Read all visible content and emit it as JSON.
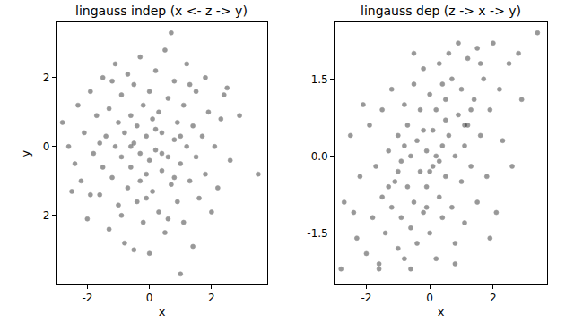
{
  "chart_data": [
    {
      "type": "scatter",
      "title": "lingauss indep (x <- z -> y)",
      "x_label": "x",
      "y_label": "y",
      "color": "#000000",
      "marker": "circle",
      "xlim": [
        -3.0,
        3.8
      ],
      "ylim": [
        -4.0,
        3.6
      ],
      "xticks": [
        -2,
        0,
        2
      ],
      "yticks": [
        -2,
        0,
        2
      ],
      "x": [
        -2.8,
        -2.6,
        -2.4,
        -2.3,
        -2.2,
        -2.1,
        -2.0,
        -1.9,
        -1.8,
        -1.7,
        -1.6,
        -1.5,
        -1.5,
        -1.4,
        -1.3,
        -1.3,
        -1.2,
        -1.1,
        -1.1,
        -1.0,
        -1.0,
        -0.9,
        -0.9,
        -0.8,
        -0.8,
        -0.7,
        -0.7,
        -0.6,
        -0.6,
        -0.5,
        -0.5,
        -0.5,
        -0.4,
        -0.4,
        -0.3,
        -0.3,
        -0.2,
        -0.2,
        -0.1,
        -0.1,
        0.0,
        0.0,
        0.0,
        0.1,
        0.1,
        0.2,
        0.2,
        0.3,
        0.3,
        0.4,
        0.4,
        0.5,
        0.5,
        0.6,
        0.6,
        0.7,
        0.7,
        0.8,
        0.8,
        0.9,
        0.9,
        1.0,
        1.0,
        1.1,
        1.1,
        1.2,
        1.2,
        1.3,
        1.4,
        1.4,
        1.5,
        1.5,
        1.6,
        1.7,
        1.8,
        1.8,
        1.9,
        2.0,
        2.1,
        2.2,
        2.3,
        2.4,
        2.6,
        2.9,
        3.5,
        2.5,
        -1.9,
        -0.3,
        0.4,
        -0.6,
        0.2,
        -0.1,
        1.0,
        -1.2,
        0.6,
        -2.5,
        1.3,
        -0.9,
        0.8,
        -1.6
      ],
      "values": [
        0.7,
        0.0,
        -0.5,
        1.2,
        -1.0,
        0.4,
        -2.1,
        1.6,
        -0.2,
        0.9,
        -1.4,
        2.0,
        -0.6,
        0.3,
        -2.4,
        1.1,
        -0.9,
        2.4,
        0.0,
        -1.7,
        0.7,
        -0.3,
        1.5,
        -2.8,
        0.4,
        -1.2,
        2.1,
        -0.6,
        0.9,
        -3.0,
        0.1,
        1.8,
        -1.6,
        0.6,
        -0.2,
        2.6,
        -2.2,
        1.2,
        -0.8,
        0.3,
        -3.1,
        1.6,
        -0.4,
        0.8,
        -1.3,
        2.2,
        -0.1,
        -1.9,
        1.0,
        -0.7,
        0.4,
        2.8,
        -2.5,
        -0.3,
        1.4,
        3.3,
        -1.1,
        0.2,
        1.9,
        -1.6,
        0.7,
        -3.7,
        -0.5,
        1.2,
        -2.2,
        0.0,
        2.4,
        -1.0,
        0.6,
        -2.9,
        1.6,
        -0.3,
        -1.5,
        0.3,
        2.0,
        -0.8,
        1.0,
        -1.9,
        0.0,
        -1.2,
        0.8,
        1.5,
        -0.4,
        0.9,
        -0.8,
        1.7,
        -1.4,
        -1.0,
        -0.2,
        0.0,
        0.5,
        -1.5,
        0.3,
        1.9,
        -2.1,
        -1.3,
        1.8,
        -2.0,
        -0.9,
        0.1
      ]
    },
    {
      "type": "scatter",
      "title": "lingauss dep (z -> x -> y)",
      "x_label": "x",
      "color": "#000000",
      "marker": "circle",
      "xlim": [
        -3.0,
        3.7
      ],
      "ylim": [
        -2.5,
        2.6
      ],
      "xticks": [
        -2,
        0,
        2
      ],
      "yticks": [
        -1.5,
        {
          "value": 0,
          "label": "0.0"
        },
        1.5
      ],
      "x": [
        -2.8,
        -2.7,
        -2.5,
        -2.3,
        -2.2,
        -2.0,
        -1.9,
        -1.8,
        -1.7,
        -1.6,
        -1.5,
        -1.5,
        -1.4,
        -1.3,
        -1.2,
        -1.2,
        -1.1,
        -1.0,
        -1.0,
        -0.9,
        -0.9,
        -0.8,
        -0.8,
        -0.7,
        -0.7,
        -0.6,
        -0.6,
        -0.5,
        -0.5,
        -0.4,
        -0.4,
        -0.3,
        -0.3,
        -0.2,
        -0.2,
        -0.1,
        -0.1,
        0.0,
        0.0,
        0.1,
        0.1,
        0.2,
        0.2,
        0.3,
        0.3,
        0.4,
        0.4,
        0.5,
        0.5,
        0.6,
        0.6,
        0.7,
        0.7,
        0.8,
        0.8,
        0.9,
        0.9,
        1.0,
        1.0,
        1.1,
        1.1,
        1.2,
        1.2,
        1.3,
        1.4,
        1.5,
        1.5,
        1.6,
        1.7,
        1.8,
        1.9,
        2.0,
        2.1,
        2.2,
        2.3,
        2.5,
        2.6,
        2.8,
        2.9,
        3.4,
        -2.1,
        -1.6,
        -0.5,
        0.3,
        -0.2,
        0.5,
        0.0,
        1.3,
        -1.0,
        0.8,
        1.9,
        -2.4,
        0.4,
        -0.6,
        1.6,
        -1.3,
        0.2,
        -0.8,
        1.1,
        -0.1
      ],
      "values": [
        -2.2,
        -0.9,
        0.4,
        -1.6,
        -0.4,
        -1.9,
        0.6,
        -1.2,
        -0.2,
        -2.1,
        -0.8,
        0.9,
        -1.5,
        0.1,
        -1.0,
        1.3,
        -0.5,
        -1.8,
        0.4,
        -1.2,
        -0.1,
        1.0,
        -2.0,
        -0.6,
        0.6,
        -1.4,
        0.0,
        1.4,
        -0.9,
        0.3,
        -1.7,
        -0.3,
        0.9,
        -1.1,
        1.7,
        0.1,
        -0.6,
        1.2,
        -1.5,
        0.5,
        -0.2,
        -2.0,
        0.9,
        -0.8,
        1.8,
        0.2,
        -1.2,
        1.1,
        -0.4,
        2.0,
        0.4,
        -1.0,
        1.5,
        0.0,
        -1.7,
        0.8,
        2.2,
        -0.5,
        1.3,
        0.2,
        -1.3,
        1.9,
        0.6,
        -0.2,
        1.1,
        -0.9,
        2.1,
        0.4,
        1.5,
        -0.4,
        0.9,
        2.2,
        -1.1,
        1.3,
        0.3,
        1.8,
        -0.2,
        2.0,
        1.1,
        2.4,
        1.0,
        -2.2,
        2.0,
        -0.1,
        0.5,
        0.7,
        -0.3,
        0.9,
        -0.3,
        -2.1,
        -1.6,
        -1.1,
        1.4,
        -2.2,
        1.8,
        -0.6,
        0.0,
        0.2,
        0.6,
        -1.0
      ]
    }
  ]
}
